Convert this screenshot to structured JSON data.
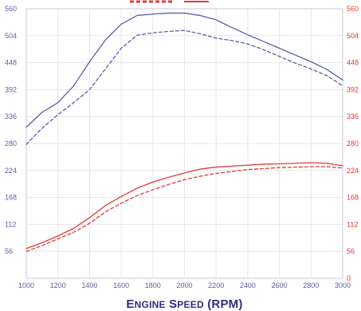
{
  "chart_data": {
    "type": "line",
    "xlabel": "Engine Speed (RPM)",
    "x": [
      1000,
      1100,
      1200,
      1300,
      1400,
      1500,
      1600,
      1700,
      1800,
      1900,
      2000,
      2100,
      2200,
      2300,
      2400,
      2500,
      2600,
      2700,
      2800,
      2900,
      3000
    ],
    "xlim": [
      1000,
      3000
    ],
    "xticks": [
      1000,
      1200,
      1400,
      1600,
      1800,
      2000,
      2200,
      2400,
      2600,
      2800,
      3000
    ],
    "ylim": [
      0,
      560
    ],
    "yticks_left": [
      56,
      112,
      168,
      224,
      280,
      336,
      392,
      448,
      504,
      560
    ],
    "yticks_right": [
      0,
      56,
      112,
      168,
      224,
      280,
      336,
      392,
      448,
      504,
      560
    ],
    "grid": true,
    "colors": {
      "left_axis": "#5b5fa8",
      "right_axis": "#e53935",
      "title_text": "#2b2f7a",
      "grid": "#e6e6ea",
      "legend_stub": "#e53935"
    },
    "series": [
      {
        "axis": "left",
        "color": "#5b5fa8",
        "style": "solid",
        "values": [
          314,
          345,
          365,
          400,
          450,
          495,
          528,
          546,
          549,
          551,
          551,
          546,
          537,
          521,
          506,
          492,
          478,
          464,
          450,
          434,
          412
        ]
      },
      {
        "axis": "left",
        "color": "#5b5fa8",
        "style": "dashed",
        "values": [
          278,
          312,
          340,
          365,
          392,
          435,
          478,
          505,
          510,
          513,
          515,
          508,
          499,
          494,
          487,
          475,
          461,
          447,
          435,
          421,
          400
        ]
      },
      {
        "axis": "right",
        "color": "#e53935",
        "style": "solid",
        "values": [
          62,
          74,
          88,
          104,
          126,
          151,
          170,
          187,
          200,
          210,
          219,
          227,
          231,
          233,
          235,
          237,
          238,
          239,
          240,
          239,
          234
        ]
      },
      {
        "axis": "right",
        "color": "#e53935",
        "style": "dashed",
        "values": [
          56,
          68,
          82,
          96,
          114,
          138,
          156,
          172,
          184,
          195,
          205,
          212,
          218,
          222,
          226,
          228,
          230,
          231,
          232,
          232,
          229
        ]
      }
    ]
  }
}
